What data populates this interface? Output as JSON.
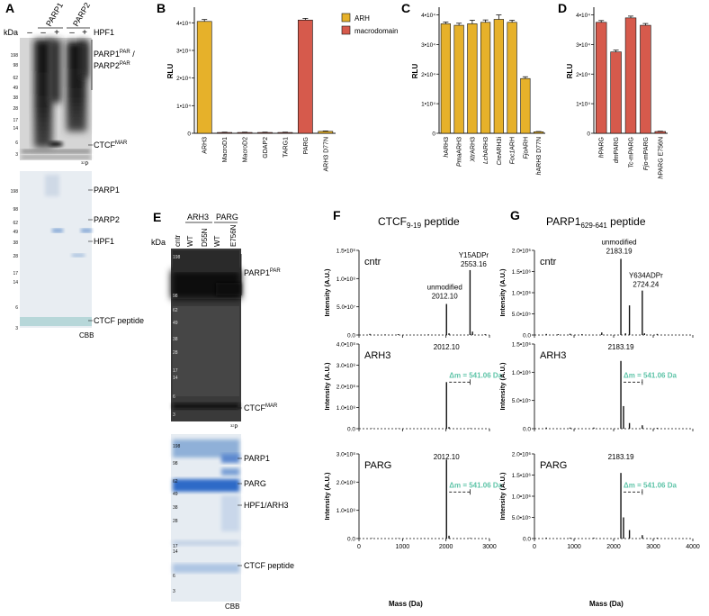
{
  "colors": {
    "arh": "#E6B12A",
    "macrodomain": "#D65A4C",
    "gel_dark": "#222222",
    "cbb_bg": "#E9EEF3",
    "cbb_band": "#4A7FC7",
    "delta": "#5EC4A8",
    "axis": "#111111"
  },
  "panels": {
    "A": {
      "letter": "A",
      "kda": "kDa",
      "lane_headers": [
        "PARP1",
        "PARP2"
      ],
      "lane_signs": [
        "–",
        "–",
        "+",
        "–",
        "+"
      ],
      "hpf1_label": "HPF1",
      "markers": [
        "198",
        "98",
        "62",
        "49",
        "38",
        "28",
        "17",
        "14",
        "6",
        "3"
      ],
      "top_labels": [
        "PARP1",
        "PAR",
        " / ",
        "PARP2",
        "PAR",
        "CTCF",
        "MAR"
      ],
      "top_footer": "32",
      "top_footer_p": "P",
      "bottom_labels": [
        "PARP1",
        "PARP2",
        "HPF1",
        "CTCF peptide"
      ],
      "bottom_footer": "CBB"
    },
    "E": {
      "letter": "E",
      "kda": "kDa",
      "group_labels": [
        "ARH3",
        "PARG"
      ],
      "lane_labels": [
        "cntr",
        "WT",
        "D55N",
        "WT",
        "E756N"
      ],
      "markers": [
        "198",
        "98",
        "62",
        "49",
        "38",
        "28",
        "17",
        "14",
        "6",
        "3"
      ],
      "top_labels": [
        "PARP1",
        "PAR",
        "CTCF",
        "MAR"
      ],
      "top_footer": "32",
      "top_footer_p": "P",
      "bottom_labels": [
        "PARP1",
        "PARG",
        "HPF1/ARH3",
        "CTCF peptide"
      ],
      "bottom_footer": "CBB"
    },
    "F": {
      "letter": "F",
      "title": "CTCF",
      "title_sub": "9-19",
      "title_suffix": " peptide",
      "ylabel": "Intensity (A.U.)",
      "xlabel": "Mass (Da)",
      "xticks": [
        "0",
        "1000",
        "2000",
        "3000"
      ],
      "delta": "Δm = 541.06 Da",
      "subpanels": [
        {
          "condition": "cntr",
          "ymax_label": "1.5•10⁸",
          "yticks": [
            "0.0",
            "5.0•10⁷",
            "1.0•10⁸",
            "1.5•10⁸"
          ],
          "annotations": [
            "unmodified",
            "2012.10",
            "Y15ADPr",
            "2553.16"
          ]
        },
        {
          "condition": "ARH3",
          "yticks": [
            "0.0",
            "1.0•10⁸",
            "2.0•10⁸",
            "3.0•10⁸",
            "4.0•10⁸"
          ],
          "annotations": [
            "2012.10"
          ]
        },
        {
          "condition": "PARG",
          "yticks": [
            "0.0",
            "1.0•10⁸",
            "2.0•10⁸",
            "3.0•10⁸"
          ],
          "annotations": [
            "2012.10"
          ]
        }
      ]
    },
    "G": {
      "letter": "G",
      "title": "PARP1",
      "title_sub": "629-641",
      "title_suffix": " peptide",
      "ylabel": "Intensity (A.U.)",
      "xlabel": "Mass (Da)",
      "xticks": [
        "0",
        "1000",
        "2000",
        "3000",
        "4000"
      ],
      "delta": "Δm = 541.06 Da",
      "subpanels": [
        {
          "condition": "cntr",
          "yticks": [
            "0.0",
            "5.0•10⁵",
            "1.0•10⁶",
            "1.5•10⁶",
            "2.0•10⁶"
          ],
          "annotations": [
            "unmodified",
            "2183.19",
            "Y634ADPr",
            "2724.24"
          ]
        },
        {
          "condition": "ARH3",
          "yticks": [
            "0.0",
            "5.0•10⁵",
            "1.0•10⁶",
            "1.5•10⁶"
          ],
          "annotations": [
            "2183.19"
          ]
        },
        {
          "condition": "PARG",
          "yticks": [
            "0.0",
            "5.0•10⁵",
            "1.0•10⁶",
            "1.5•10⁶",
            "2.0•10⁶"
          ],
          "annotations": [
            "2183.19"
          ]
        }
      ]
    }
  },
  "chart_data": [
    {
      "panel": "B",
      "type": "bar",
      "ylabel": "RLU",
      "ylim": [
        0,
        45000
      ],
      "yticks": [
        0,
        10000,
        20000,
        30000,
        40000
      ],
      "ytick_labels": [
        "0",
        "1•10⁴",
        "2•10⁴",
        "3•10⁴",
        "4•10⁴"
      ],
      "categories": [
        "ARH3",
        "MacroD1",
        "MacroD2",
        "GDAP2",
        "TARG1",
        "PARG",
        "ARH3 D77N"
      ],
      "values": [
        40500,
        300,
        300,
        300,
        300,
        41000,
        700
      ],
      "errors": [
        700,
        100,
        100,
        100,
        100,
        600,
        150
      ],
      "groups": [
        "arh",
        "macrodomain",
        "macrodomain",
        "macrodomain",
        "macrodomain",
        "macrodomain",
        "arh"
      ],
      "legend": [
        {
          "name": "ARH",
          "group": "arh"
        },
        {
          "name": "macrodomain",
          "group": "macrodomain"
        }
      ],
      "legend_position": "top-right"
    },
    {
      "panel": "C",
      "type": "bar",
      "ylabel": "RLU",
      "ylim": [
        0,
        42000
      ],
      "yticks": [
        0,
        10000,
        20000,
        30000,
        40000
      ],
      "ytick_labels": [
        "0",
        "1•10⁴",
        "2•10⁴",
        "3•10⁴",
        "4•10⁴"
      ],
      "categories": [
        [
          "h",
          "ARH3"
        ],
        [
          "Pma",
          "ARH3"
        ],
        [
          "Xtr",
          "ARH3"
        ],
        [
          "Lch",
          "ARH3"
        ],
        [
          "Cre",
          "ARH3i"
        ],
        [
          "Foc1",
          "ARH"
        ],
        [
          "Fjo",
          "ARH"
        ],
        [
          "h",
          "ARH3 D77N"
        ]
      ],
      "values": [
        37000,
        36500,
        37000,
        37500,
        38500,
        37500,
        18500,
        500
      ],
      "errors": [
        600,
        700,
        1200,
        800,
        1500,
        700,
        600,
        100
      ],
      "groups": [
        "arh",
        "arh",
        "arh",
        "arh",
        "arh",
        "arh",
        "arh",
        "arh"
      ]
    },
    {
      "panel": "D",
      "type": "bar",
      "ylabel": "RLU",
      "ylim": [
        0,
        42000
      ],
      "yticks": [
        0,
        10000,
        20000,
        30000,
        40000
      ],
      "ytick_labels": [
        "0",
        "1•10⁴",
        "2•10⁴",
        "3•10⁴",
        "4•10⁴"
      ],
      "categories": [
        [
          "h",
          "PARG"
        ],
        [
          "dm",
          "PARG"
        ],
        [
          "Tc-",
          "mPARG"
        ],
        [
          "Fjo-",
          "mPARG"
        ],
        [
          "h",
          "PARG E756N"
        ]
      ],
      "values": [
        37500,
        27500,
        39000,
        36500,
        600
      ],
      "errors": [
        600,
        600,
        600,
        600,
        100
      ],
      "groups": [
        "macrodomain",
        "macrodomain",
        "macrodomain",
        "macrodomain",
        "macrodomain"
      ]
    },
    {
      "panel": "F",
      "type": "line",
      "xlim": [
        0,
        3000
      ],
      "series": [
        {
          "name": "cntr",
          "ylim": [
            0,
            150000000
          ],
          "peaks": [
            [
              250,
              2000000
            ],
            [
              600,
              1000000
            ],
            [
              900,
              1500000
            ],
            [
              1600,
              1000000
            ],
            [
              2012.1,
              55000000
            ],
            [
              2070,
              3000000
            ],
            [
              2553.16,
              115000000
            ],
            [
              2610,
              6000000
            ],
            [
              2900,
              1500000
            ]
          ]
        },
        {
          "name": "ARH3",
          "ylim": [
            0,
            400000000
          ],
          "peaks": [
            [
              300,
              1500000
            ],
            [
              900,
              1000000
            ],
            [
              1500,
              1000000
            ],
            [
              2012.1,
              220000000
            ],
            [
              2070,
              8000000
            ],
            [
              2553,
              2000000
            ]
          ]
        },
        {
          "name": "PARG",
          "ylim": [
            0,
            300000000
          ],
          "peaks": [
            [
              300,
              1500000
            ],
            [
              900,
              1000000
            ],
            [
              1500,
              1000000
            ],
            [
              2012.1,
              280000000
            ],
            [
              2070,
              10000000
            ],
            [
              2553,
              2000000
            ]
          ]
        }
      ]
    },
    {
      "panel": "G",
      "type": "line",
      "xlim": [
        0,
        4000
      ],
      "series": [
        {
          "name": "cntr",
          "ylim": [
            0,
            2000000
          ],
          "peaks": [
            [
              300,
              25000
            ],
            [
              600,
              20000
            ],
            [
              900,
              30000
            ],
            [
              1200,
              20000
            ],
            [
              1700,
              60000
            ],
            [
              2183.19,
              1800000
            ],
            [
              2300,
              40000
            ],
            [
              2400,
              700000
            ],
            [
              2724.24,
              1050000
            ],
            [
              2780,
              40000
            ],
            [
              3100,
              25000
            ]
          ]
        },
        {
          "name": "ARH3",
          "ylim": [
            0,
            1500000
          ],
          "peaks": [
            [
              300,
              20000
            ],
            [
              900,
              20000
            ],
            [
              1500,
              20000
            ],
            [
              2183.19,
              1200000
            ],
            [
              2250,
              400000
            ],
            [
              2400,
              100000
            ],
            [
              2724,
              60000
            ],
            [
              3100,
              15000
            ]
          ]
        },
        {
          "name": "PARG",
          "ylim": [
            0,
            2000000
          ],
          "peaks": [
            [
              300,
              20000
            ],
            [
              900,
              20000
            ],
            [
              1500,
              20000
            ],
            [
              2183.19,
              1550000
            ],
            [
              2250,
              500000
            ],
            [
              2400,
              200000
            ],
            [
              2724,
              80000
            ],
            [
              3100,
              20000
            ]
          ]
        }
      ]
    }
  ]
}
